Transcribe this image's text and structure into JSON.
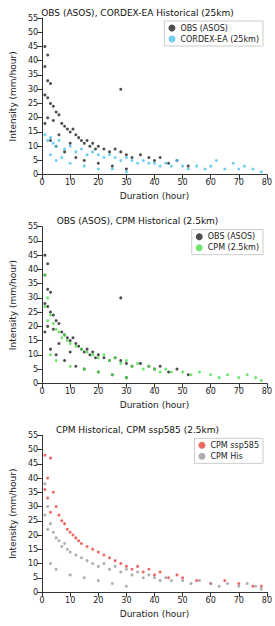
{
  "chart_data": [
    {
      "type": "scatter",
      "title": "OBS (ASOS), CORDEX-EA Historical (25km)",
      "x_label": "Duration (hour)",
      "y_label": "Intensity (mm/hour)",
      "xlim": [
        0,
        80
      ],
      "xticks": [
        0,
        10,
        20,
        30,
        40,
        50,
        60,
        70,
        80
      ],
      "ylim": [
        0,
        55
      ],
      "yticks": [
        0,
        5,
        10,
        15,
        20,
        25,
        30,
        35,
        40,
        45,
        50,
        55
      ],
      "grid": false,
      "legend": "upper right",
      "marker": "circle",
      "series": [
        {
          "name": "OBS (ASOS)",
          "color": "#222222",
          "x": [
            1,
            1,
            2,
            2,
            3,
            1,
            2,
            3,
            4,
            5,
            6,
            4,
            7,
            8,
            9,
            10,
            11,
            12,
            13,
            14,
            15,
            16,
            17,
            18,
            19,
            20,
            22,
            24,
            26,
            28,
            28,
            30,
            32,
            35,
            38,
            40,
            42,
            45,
            48,
            52,
            3,
            5,
            8,
            12,
            15,
            20,
            25,
            30,
            6,
            10,
            2,
            1
          ],
          "values": [
            45,
            38,
            42,
            33,
            32,
            28,
            27,
            25,
            24,
            22,
            21,
            19,
            18,
            17,
            16,
            15,
            16,
            14,
            13,
            12,
            11,
            12,
            10,
            11,
            9,
            10,
            9,
            8,
            9,
            30,
            8,
            7,
            6,
            7,
            6,
            5,
            6,
            4,
            5,
            3,
            12,
            10,
            8,
            6,
            5,
            4,
            3,
            2,
            14,
            11,
            20,
            18
          ]
        },
        {
          "name": "CORDEX-EA (25km)",
          "color": "#4cc3ee",
          "x": [
            1,
            2,
            3,
            4,
            5,
            6,
            8,
            10,
            12,
            14,
            16,
            18,
            20,
            22,
            24,
            26,
            28,
            30,
            32,
            34,
            36,
            38,
            40,
            42,
            44,
            46,
            48,
            50,
            52,
            55,
            58,
            60,
            62,
            65,
            68,
            70,
            72,
            75,
            78,
            5,
            10,
            15,
            20,
            25,
            30,
            3,
            7
          ],
          "values": [
            14,
            12,
            13,
            11,
            10,
            12,
            9,
            10,
            8,
            9,
            7,
            8,
            7,
            6,
            7,
            6,
            5,
            6,
            5,
            4,
            5,
            4,
            4,
            3,
            4,
            3,
            5,
            3,
            2,
            3,
            2,
            3,
            5,
            2,
            4,
            2,
            3,
            2,
            1,
            5,
            4,
            3,
            2,
            2,
            1,
            7,
            6
          ]
        }
      ]
    },
    {
      "type": "scatter",
      "title": "OBS (ASOS), CPM Historical (2.5km)",
      "x_label": "Duration (hour)",
      "y_label": "Intensity (mm/hour)",
      "xlim": [
        0,
        80
      ],
      "xticks": [
        0,
        10,
        20,
        30,
        40,
        50,
        60,
        70,
        80
      ],
      "ylim": [
        0,
        55
      ],
      "yticks": [
        0,
        5,
        10,
        15,
        20,
        25,
        30,
        35,
        40,
        45,
        50,
        55
      ],
      "grid": false,
      "legend": "upper right",
      "marker": "circle",
      "series": [
        {
          "name": "OBS (ASOS)",
          "color": "#222222",
          "x": [
            1,
            1,
            2,
            2,
            3,
            1,
            2,
            3,
            4,
            5,
            6,
            4,
            7,
            8,
            9,
            10,
            11,
            12,
            13,
            14,
            15,
            16,
            17,
            18,
            19,
            20,
            22,
            24,
            26,
            28,
            28,
            30,
            32,
            35,
            38,
            40,
            42,
            45,
            48,
            52,
            3,
            5,
            8,
            12,
            15,
            20,
            25,
            30,
            6,
            10,
            2,
            1
          ],
          "values": [
            45,
            38,
            42,
            33,
            32,
            28,
            27,
            25,
            24,
            22,
            21,
            19,
            18,
            17,
            16,
            15,
            16,
            14,
            13,
            12,
            11,
            12,
            10,
            11,
            9,
            10,
            9,
            8,
            9,
            30,
            8,
            7,
            6,
            7,
            6,
            5,
            6,
            4,
            5,
            3,
            12,
            10,
            8,
            6,
            5,
            4,
            3,
            2,
            14,
            11,
            20,
            18
          ]
        },
        {
          "name": "CPM (2.5km)",
          "color": "#4ddd4d",
          "x": [
            1,
            2,
            1,
            3,
            2,
            4,
            5,
            6,
            7,
            8,
            9,
            10,
            12,
            14,
            16,
            18,
            20,
            22,
            24,
            26,
            28,
            30,
            32,
            34,
            36,
            38,
            40,
            42,
            44,
            46,
            50,
            53,
            56,
            60,
            63,
            66,
            70,
            73,
            76,
            78,
            5,
            10,
            15,
            20,
            25,
            30,
            3
          ],
          "values": [
            38,
            30,
            27,
            24,
            22,
            21,
            19,
            18,
            16,
            17,
            15,
            14,
            13,
            12,
            11,
            10,
            9,
            10,
            8,
            9,
            7,
            8,
            6,
            7,
            5,
            6,
            5,
            4,
            5,
            4,
            4,
            3,
            4,
            3,
            2,
            3,
            2,
            3,
            2,
            1,
            8,
            6,
            5,
            4,
            3,
            2,
            10
          ]
        }
      ]
    },
    {
      "type": "scatter",
      "title": "CPM Historical, CPM ssp585 (2.5km)",
      "x_label": "Duration (hour)",
      "y_label": "Intensity (mm/hour)",
      "xlim": [
        0,
        80
      ],
      "xticks": [
        0,
        10,
        20,
        30,
        40,
        50,
        60,
        70,
        80
      ],
      "ylim": [
        0,
        55
      ],
      "yticks": [
        0,
        5,
        10,
        15,
        20,
        25,
        30,
        35,
        40,
        45,
        50,
        55
      ],
      "grid": false,
      "legend": "upper right",
      "marker": "circle",
      "series": [
        {
          "name": "CPM ssp585",
          "color": "#e8453c",
          "x": [
            1,
            3,
            2,
            1,
            4,
            2,
            5,
            3,
            6,
            7,
            8,
            9,
            10,
            11,
            12,
            13,
            14,
            16,
            18,
            20,
            22,
            24,
            26,
            28,
            30,
            32,
            34,
            36,
            38,
            40,
            42,
            45,
            48,
            50,
            55,
            60,
            65,
            70,
            75,
            78
          ],
          "values": [
            48,
            47,
            40,
            36,
            35,
            33,
            30,
            28,
            27,
            25,
            24,
            22,
            21,
            20,
            19,
            18,
            17,
            16,
            15,
            14,
            13,
            12,
            11,
            10,
            9,
            8,
            9,
            7,
            8,
            6,
            7,
            5,
            6,
            5,
            4,
            3,
            4,
            3,
            2,
            2
          ]
        },
        {
          "name": "CPM His",
          "color": "#9a9a9a",
          "x": [
            1,
            2,
            1,
            3,
            2,
            4,
            5,
            6,
            7,
            8,
            9,
            10,
            12,
            14,
            16,
            18,
            20,
            22,
            24,
            26,
            28,
            30,
            32,
            34,
            36,
            38,
            40,
            42,
            44,
            46,
            50,
            53,
            56,
            60,
            63,
            66,
            70,
            73,
            76,
            78,
            5,
            10,
            15,
            20,
            25,
            30,
            3
          ],
          "values": [
            38,
            30,
            27,
            24,
            22,
            21,
            19,
            18,
            16,
            17,
            15,
            14,
            13,
            12,
            11,
            10,
            9,
            10,
            8,
            9,
            7,
            8,
            6,
            7,
            5,
            6,
            5,
            4,
            5,
            4,
            4,
            3,
            4,
            3,
            2,
            3,
            2,
            3,
            2,
            1,
            8,
            6,
            5,
            4,
            3,
            2,
            10
          ]
        }
      ]
    }
  ]
}
